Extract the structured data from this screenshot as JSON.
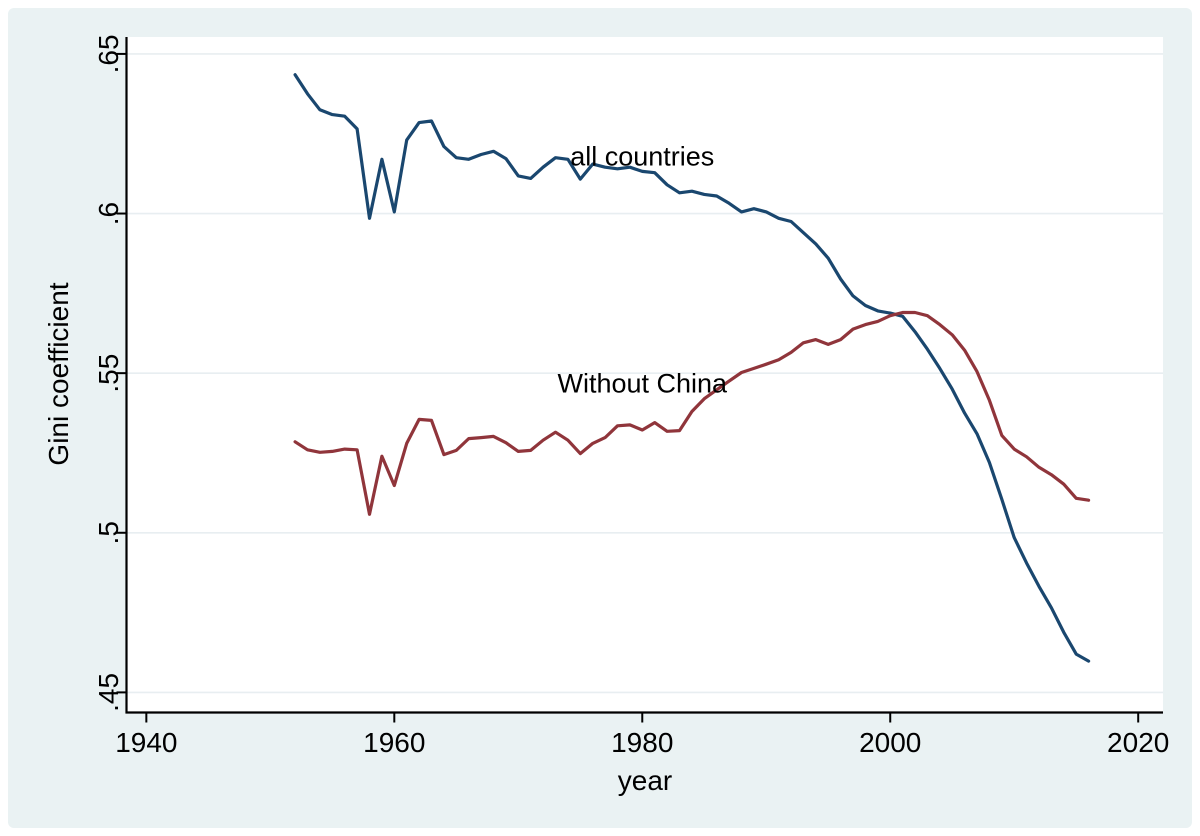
{
  "figure": {
    "canvas_color": "#eaf2f3",
    "plot_background_color": "#ffffff",
    "grid_color": "#e8eef1",
    "axis_color": "#000000",
    "text_color": "#000000"
  },
  "chart_data": {
    "type": "line",
    "title": "",
    "xlabel": "year",
    "ylabel": "Gini coefficient",
    "legend_position": "none (inline text annotations)",
    "grid": "horizontal gridlines at y ticks only",
    "x_tick_values": [
      1940,
      1960,
      1980,
      2000,
      2020
    ],
    "x_tick_labels": [
      "1940",
      "1960",
      "1980",
      "2000",
      "2020"
    ],
    "y_tick_values": [
      0.65,
      0.6,
      0.55,
      0.5,
      0.45
    ],
    "y_tick_labels": [
      ".65",
      ".6",
      ".55",
      ".5",
      ".45"
    ],
    "xlim": [
      1938.4,
      2022.0
    ],
    "ylim": [
      0.4437,
      0.6553
    ],
    "x": [
      1952,
      1953,
      1954,
      1955,
      1956,
      1957,
      1958,
      1959,
      1960,
      1961,
      1962,
      1963,
      1964,
      1965,
      1966,
      1967,
      1968,
      1969,
      1970,
      1971,
      1972,
      1973,
      1974,
      1975,
      1976,
      1977,
      1978,
      1979,
      1980,
      1981,
      1982,
      1983,
      1984,
      1985,
      1986,
      1987,
      1988,
      1989,
      1990,
      1991,
      1992,
      1993,
      1994,
      1995,
      1996,
      1997,
      1998,
      1999,
      2000,
      2001,
      2002,
      2003,
      2004,
      2005,
      2006,
      2007,
      2008,
      2009,
      2010,
      2011,
      2012,
      2013,
      2014,
      2015,
      2016
    ],
    "series": [
      {
        "name": "all countries",
        "color": "#1a476f",
        "values": [
          0.6435,
          0.6375,
          0.6325,
          0.631,
          0.6305,
          0.6265,
          0.5985,
          0.617,
          0.6005,
          0.623,
          0.6285,
          0.629,
          0.621,
          0.6175,
          0.617,
          0.6185,
          0.6195,
          0.6172,
          0.6118,
          0.611,
          0.6145,
          0.6175,
          0.617,
          0.6108,
          0.6155,
          0.6145,
          0.614,
          0.6145,
          0.6132,
          0.6128,
          0.609,
          0.6065,
          0.607,
          0.606,
          0.6055,
          0.6032,
          0.6005,
          0.6015,
          0.6005,
          0.5985,
          0.5975,
          0.594,
          0.5905,
          0.586,
          0.5795,
          0.5742,
          0.5712,
          0.5695,
          0.5688,
          0.5678,
          0.563,
          0.5575,
          0.5515,
          0.545,
          0.5375,
          0.531,
          0.522,
          0.5105,
          0.4985,
          0.4905,
          0.4832,
          0.4765,
          0.4688,
          0.462,
          0.4598
        ]
      },
      {
        "name": "Without China",
        "color": "#90353b",
        "values": [
          0.5285,
          0.526,
          0.5252,
          0.5255,
          0.5262,
          0.526,
          0.5058,
          0.524,
          0.5148,
          0.528,
          0.5355,
          0.5352,
          0.5245,
          0.5258,
          0.5295,
          0.5298,
          0.5302,
          0.5282,
          0.5255,
          0.5258,
          0.529,
          0.5315,
          0.529,
          0.5248,
          0.528,
          0.5298,
          0.5335,
          0.5338,
          0.5322,
          0.5345,
          0.5318,
          0.532,
          0.538,
          0.542,
          0.5448,
          0.5475,
          0.5502,
          0.5515,
          0.5528,
          0.5542,
          0.5565,
          0.5595,
          0.5605,
          0.559,
          0.5605,
          0.5638,
          0.5652,
          0.5662,
          0.568,
          0.569,
          0.569,
          0.568,
          0.5652,
          0.562,
          0.5572,
          0.5505,
          0.5415,
          0.5305,
          0.5262,
          0.5238,
          0.5205,
          0.5182,
          0.5152,
          0.5108,
          0.5102
        ]
      }
    ],
    "annotations": [
      {
        "text": "all countries",
        "year": 1980,
        "gini": 0.6151
      },
      {
        "text": "Without China",
        "year": 1980,
        "gini": 0.544
      }
    ]
  }
}
